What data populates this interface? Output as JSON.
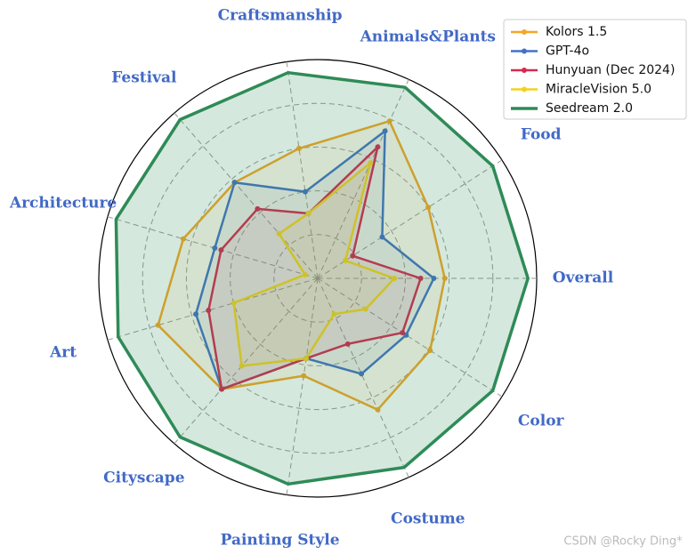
{
  "chart_data": {
    "type": "radar",
    "categories": [
      "Overall",
      "Food",
      "Animals&Plants",
      "Craftsmanship",
      "Festival",
      "Architecture",
      "Art",
      "Cityscape",
      "Painting Style",
      "Costume",
      "Color"
    ],
    "ylim": [
      0,
      1
    ],
    "yticks": [
      0.2,
      0.4,
      0.6,
      0.8,
      1.0
    ],
    "grid": true,
    "legend_position": "upper right",
    "series": [
      {
        "name": "Kolors 1.5",
        "color": "#f5a623",
        "values": [
          0.58,
          0.6,
          0.79,
          0.6,
          0.58,
          0.64,
          0.76,
          0.67,
          0.45,
          0.66,
          0.61
        ]
      },
      {
        "name": "GPT-4o",
        "color": "#4472c4",
        "values": [
          0.53,
          0.35,
          0.74,
          0.4,
          0.58,
          0.49,
          0.58,
          0.67,
          0.37,
          0.48,
          0.48
        ]
      },
      {
        "name": "Hunyuan (Dec 2024)",
        "color": "#d6294f",
        "values": [
          0.47,
          0.19,
          0.66,
          0.3,
          0.42,
          0.46,
          0.52,
          0.67,
          0.37,
          0.33,
          0.46
        ]
      },
      {
        "name": "MiracleVision 5.0",
        "color": "#f5d01e",
        "values": [
          0.35,
          0.15,
          0.58,
          0.3,
          0.27,
          0.06,
          0.4,
          0.53,
          0.37,
          0.18,
          0.26
        ]
      },
      {
        "name": "Seedream 2.0",
        "color": "#2e8b57",
        "values": [
          0.96,
          0.95,
          0.96,
          0.95,
          0.96,
          0.96,
          0.95,
          0.96,
          0.95,
          0.95,
          0.95
        ]
      }
    ],
    "watermark": "CSDN @Rocky Ding*"
  }
}
